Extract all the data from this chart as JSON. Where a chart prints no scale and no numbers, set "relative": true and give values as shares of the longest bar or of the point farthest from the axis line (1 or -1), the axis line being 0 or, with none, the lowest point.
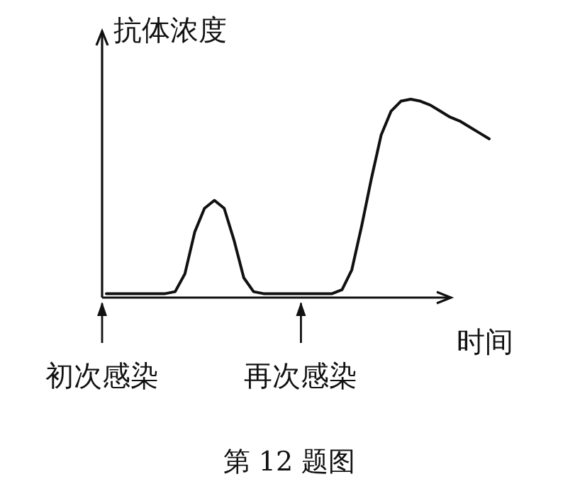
{
  "chart_data": {
    "type": "line",
    "relative": true,
    "ylabel": "抗体浓度",
    "xlabel": "时间",
    "color": "#111111",
    "categories": [
      null,
      null,
      null,
      null,
      null,
      null,
      null,
      null,
      null,
      null,
      null,
      null,
      null,
      null,
      null,
      null,
      null,
      null,
      null,
      null,
      null,
      null,
      null,
      null,
      null,
      null,
      null,
      null,
      null,
      null,
      null,
      null,
      null,
      null,
      null,
      null,
      null,
      null,
      null,
      null
    ],
    "values": [
      0.02,
      0.02,
      0.02,
      0.02,
      0.02,
      0.02,
      0.02,
      0.03,
      0.12,
      0.33,
      0.45,
      0.49,
      0.45,
      0.29,
      0.1,
      0.03,
      0.02,
      0.02,
      0.02,
      0.02,
      0.02,
      0.02,
      0.02,
      0.02,
      0.04,
      0.14,
      0.36,
      0.6,
      0.82,
      0.94,
      0.99,
      1,
      0.99,
      0.97,
      0.94,
      0.91,
      0.89,
      0.86,
      0.83,
      0.8
    ],
    "annotations": [
      "初次感染",
      "再次感染",
      "第 12 题图"
    ]
  }
}
